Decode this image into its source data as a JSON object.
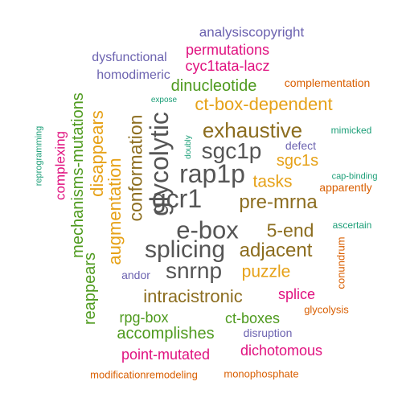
{
  "palette": {
    "gray": "#555555",
    "olive": "#8C6D1F",
    "green": "#4E9A1E",
    "magenta": "#E0117F",
    "gold": "#E6A117",
    "purple": "#6C63B0",
    "orange": "#D95F02",
    "teal": "#1B9E77"
  },
  "words": [
    {
      "text": "e-box",
      "color": "gray"
    },
    {
      "text": "rap1p",
      "color": "gray"
    },
    {
      "text": "gcr1",
      "color": "gray"
    },
    {
      "text": "splicing",
      "color": "gray"
    },
    {
      "text": "sgc1p",
      "color": "gray"
    },
    {
      "text": "glycolytic",
      "color": "gray"
    },
    {
      "text": "snrnp",
      "color": "gray"
    },
    {
      "text": "exhaustive",
      "color": "olive"
    },
    {
      "text": "pre-mrna",
      "color": "olive"
    },
    {
      "text": "adjacent",
      "color": "olive"
    },
    {
      "text": "5-end",
      "color": "olive"
    },
    {
      "text": "conformation",
      "color": "olive"
    },
    {
      "text": "intracistronic",
      "color": "olive"
    },
    {
      "text": "ct-box-dependent",
      "color": "gold"
    },
    {
      "text": "augmentation",
      "color": "gold"
    },
    {
      "text": "disappears",
      "color": "gold"
    },
    {
      "text": "tasks",
      "color": "gold"
    },
    {
      "text": "sgc1s",
      "color": "gold"
    },
    {
      "text": "puzzle",
      "color": "gold"
    },
    {
      "text": "mechanisms-mutations",
      "color": "green"
    },
    {
      "text": "reappears",
      "color": "green"
    },
    {
      "text": "dinucleotide",
      "color": "green"
    },
    {
      "text": "rpg-box",
      "color": "green"
    },
    {
      "text": "ct-boxes",
      "color": "green"
    },
    {
      "text": "accomplishes",
      "color": "green"
    },
    {
      "text": "permutations",
      "color": "magenta"
    },
    {
      "text": "cyc1tata-lacz",
      "color": "magenta"
    },
    {
      "text": "complexing",
      "color": "magenta"
    },
    {
      "text": "splice",
      "color": "magenta"
    },
    {
      "text": "point-mutated",
      "color": "magenta"
    },
    {
      "text": "dichotomous",
      "color": "magenta"
    },
    {
      "text": "analysiscopyright",
      "color": "purple"
    },
    {
      "text": "dysfunctional",
      "color": "purple"
    },
    {
      "text": "homodimeric",
      "color": "purple"
    },
    {
      "text": "defect",
      "color": "purple"
    },
    {
      "text": "andor",
      "color": "purple"
    },
    {
      "text": "disruption",
      "color": "purple"
    },
    {
      "text": "complementation",
      "color": "orange"
    },
    {
      "text": "apparently",
      "color": "orange"
    },
    {
      "text": "conundrum",
      "color": "orange"
    },
    {
      "text": "glycolysis",
      "color": "orange"
    },
    {
      "text": "modificationremodeling",
      "color": "orange"
    },
    {
      "text": "monophosphate",
      "color": "orange"
    },
    {
      "text": "expose",
      "color": "teal"
    },
    {
      "text": "reprogramming",
      "color": "teal"
    },
    {
      "text": "doubly",
      "color": "teal"
    },
    {
      "text": "mimicked",
      "color": "teal"
    },
    {
      "text": "cap-binding",
      "color": "teal"
    },
    {
      "text": "ascertain",
      "color": "teal"
    }
  ]
}
